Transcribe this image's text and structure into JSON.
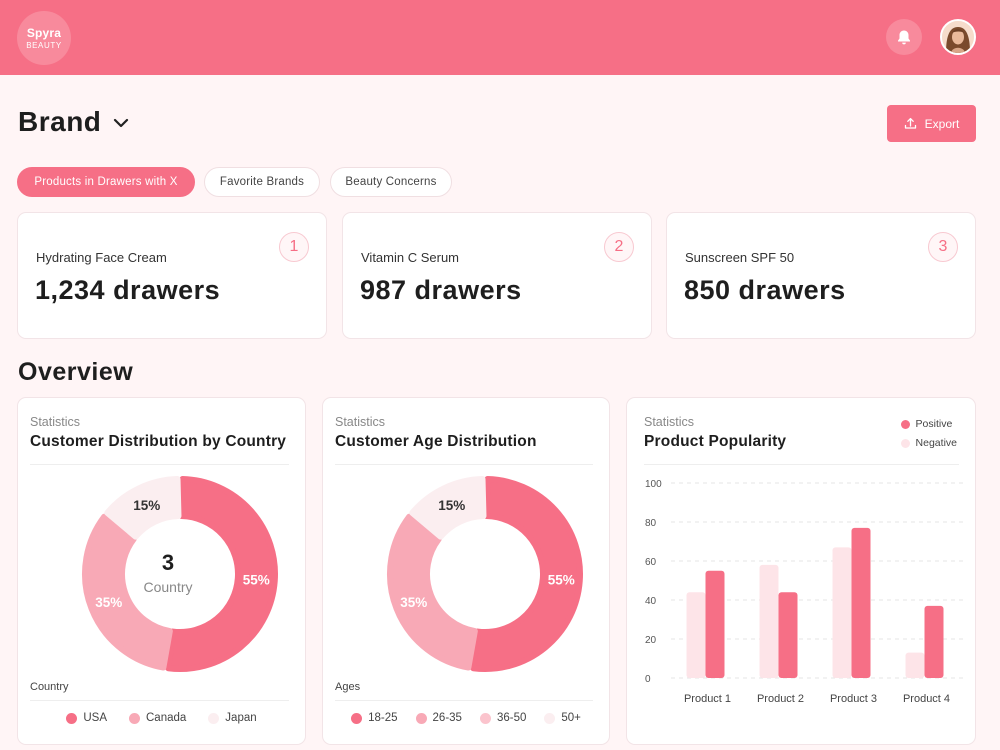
{
  "header": {
    "logo_line1": "Spyra",
    "logo_line2": "BEAUTY",
    "bell_icon": "bell-icon",
    "avatar_icon": "user-avatar"
  },
  "page": {
    "title": "Brand",
    "export_label": "Export"
  },
  "tabs": [
    {
      "label": "Products in Drawers with X",
      "active": true
    },
    {
      "label": "Favorite Brands",
      "active": false
    },
    {
      "label": "Beauty Concerns",
      "active": false
    }
  ],
  "top_products": [
    {
      "name": "Hydrating Face Cream",
      "value": "1,234 drawers",
      "rank": "1"
    },
    {
      "name": "Vitamin C Serum",
      "value": "987 drawers",
      "rank": "2"
    },
    {
      "name": "Sunscreen SPF 50",
      "value": "850 drawers",
      "rank": "3"
    }
  ],
  "overview": {
    "title": "Overview",
    "country_card": {
      "kicker": "Statistics",
      "title": "Customer Distribution by Country",
      "center_value": "3",
      "center_label": "Country",
      "footer_label": "Country"
    },
    "age_card": {
      "kicker": "Statistics",
      "title": "Customer Age Distribution",
      "footer_label": "Ages"
    },
    "popularity_card": {
      "kicker": "Statistics",
      "title": "Product Popularity"
    }
  },
  "colors": {
    "primary": "#f66f86",
    "mid": "#f8a9b6",
    "light": "#fde4e8",
    "pale": "#fbeef0"
  },
  "chart_data": [
    {
      "type": "pie",
      "title": "Customer Distribution by Country",
      "labels": [
        "USA",
        "Canada",
        "Japan"
      ],
      "values": [
        55,
        35,
        15
      ],
      "value_labels": [
        "55%",
        "35%",
        "15%"
      ],
      "colors": [
        "#f66f86",
        "#f8a9b6",
        "#fbeef0"
      ],
      "legend_position": "bottom"
    },
    {
      "type": "pie",
      "title": "Customer Age Distribution",
      "labels": [
        "18-25",
        "26-35",
        "36-50",
        "50+"
      ],
      "values": [
        55,
        35,
        15,
        0
      ],
      "value_labels": [
        "55%",
        "35%",
        "15%",
        ""
      ],
      "colors": [
        "#f66f86",
        "#f8a9b6",
        "#fbeef0",
        "#fbeef0"
      ],
      "legend_colors": [
        "#f66f86",
        "#f8a9b6",
        "#fbc4cd",
        "#fbeef0"
      ],
      "legend_position": "bottom"
    },
    {
      "type": "bar",
      "title": "Product Popularity",
      "categories": [
        "Product 1",
        "Product 2",
        "Product 3",
        "Product 4"
      ],
      "series": [
        {
          "name": "Positive",
          "values": [
            55,
            44,
            77,
            37
          ],
          "color": "#f66f86"
        },
        {
          "name": "Negative",
          "values": [
            44,
            58,
            67,
            13
          ],
          "color": "#fde4e8"
        }
      ],
      "ylim": [
        0,
        100
      ],
      "yticks": [
        "0",
        "20",
        "40",
        "60",
        "80",
        "100"
      ],
      "grid": true,
      "legend_position": "top-right"
    }
  ]
}
